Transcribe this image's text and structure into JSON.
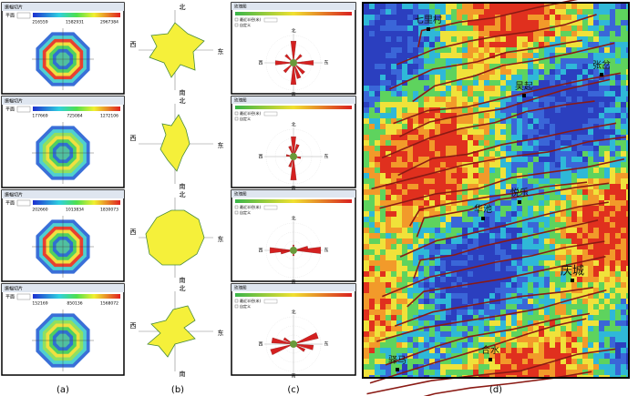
{
  "panel_a": {
    "windows": [
      {
        "title": "振幅切片",
        "plane_label": "平面",
        "colorbar_labels": [
          "216559",
          "1582931",
          "2967384"
        ]
      },
      {
        "title": "振幅切片",
        "plane_label": "平面",
        "colorbar_labels": [
          "177669",
          "725084",
          "1272106"
        ]
      },
      {
        "title": "振幅切片",
        "plane_label": "平面",
        "colorbar_labels": [
          "202660",
          "1013834",
          "1830073"
        ]
      },
      {
        "title": "振幅切片",
        "plane_label": "平面",
        "colorbar_labels": [
          "152169",
          "850136",
          "1568072"
        ]
      }
    ]
  },
  "panel_b": {
    "roses": [
      {
        "north": "北",
        "east": "东",
        "south": "南",
        "west": "西"
      },
      {
        "north": "北",
        "east": "东",
        "south": "南",
        "west": "西"
      },
      {
        "north": "北",
        "east": "东",
        "south": "南",
        "west": "西"
      },
      {
        "north": "北",
        "east": "东",
        "south": "南",
        "west": "西"
      }
    ]
  },
  "panel_c": {
    "windows": [
      {
        "title": "玫瑰图",
        "radius_label": "最近半径(米)",
        "custom_label": "自定义",
        "north": "北",
        "east": "东",
        "south": "南",
        "west": "西"
      },
      {
        "title": "玫瑰图",
        "radius_label": "最近半径(米)",
        "custom_label": "自定义",
        "north": "北",
        "east": "东",
        "south": "南",
        "west": "西"
      },
      {
        "title": "玫瑰图",
        "radius_label": "最近半径(米)",
        "custom_label": "自定义",
        "north": "北",
        "east": "东",
        "south": "南",
        "west": "西"
      },
      {
        "title": "玫瑰图",
        "radius_label": "最近半径(米)",
        "custom_label": "自定义",
        "north": "北",
        "east": "东",
        "south": "南",
        "west": "西"
      }
    ]
  },
  "panel_d": {
    "places": [
      "七里村",
      "张岔",
      "吴起",
      "悦乐",
      "华池",
      "庆城",
      "合水",
      "驿马"
    ]
  },
  "captions": [
    "(a)",
    "(b)",
    "(c)",
    "(d)"
  ]
}
